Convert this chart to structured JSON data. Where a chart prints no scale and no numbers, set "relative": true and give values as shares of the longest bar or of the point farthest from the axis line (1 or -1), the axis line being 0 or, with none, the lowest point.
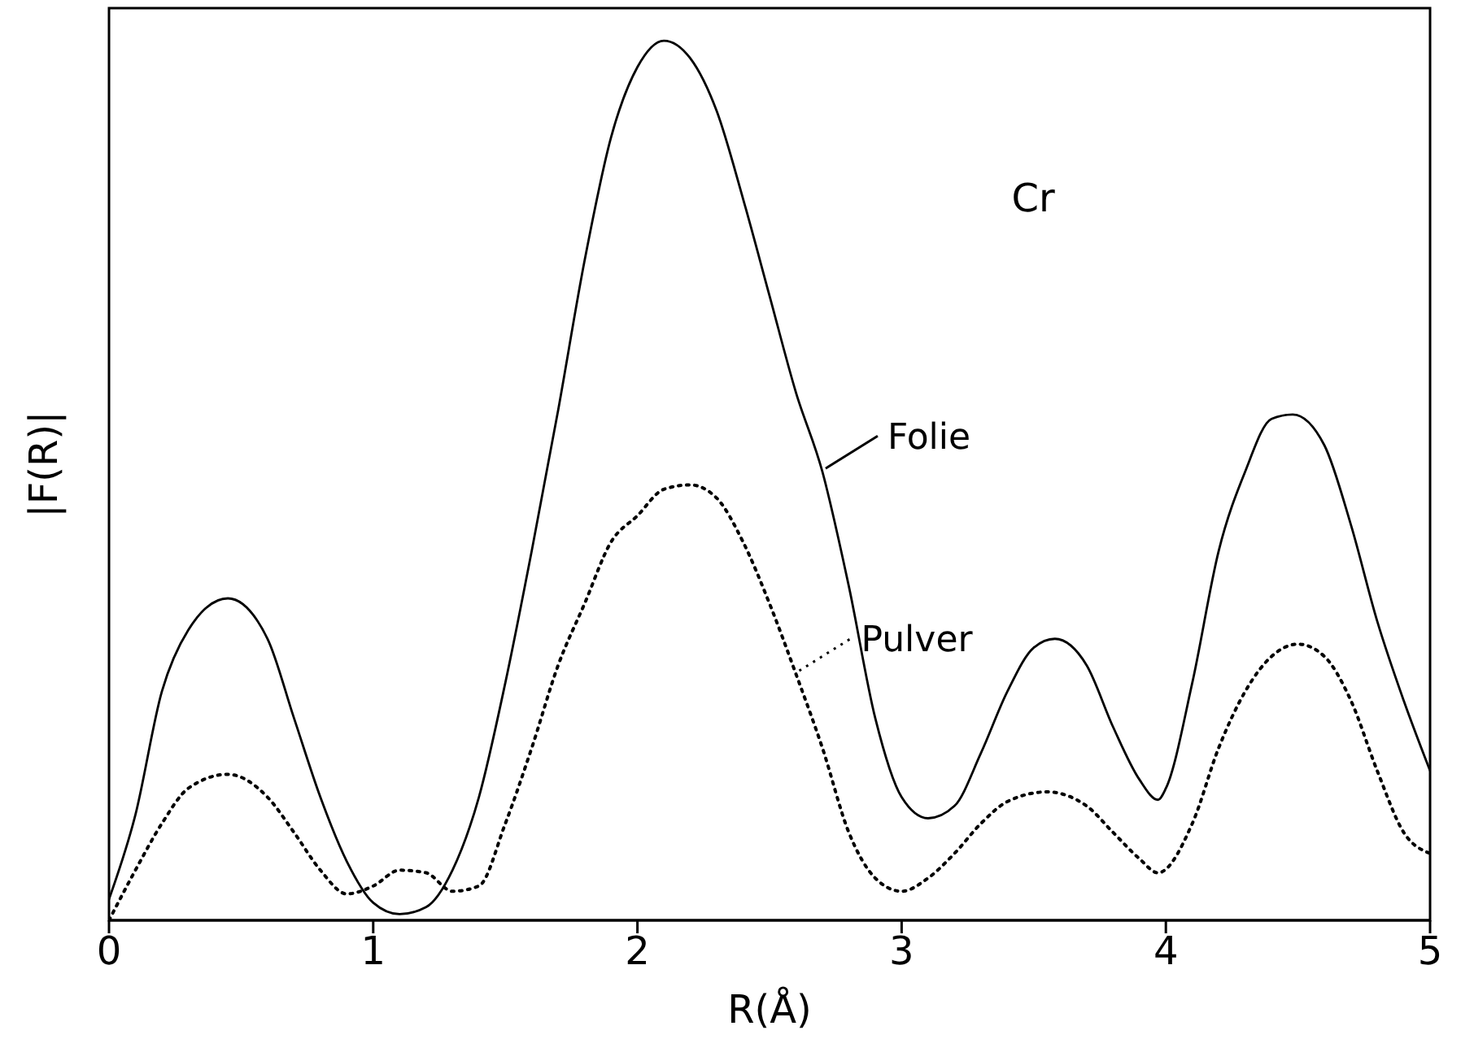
{
  "chart_data": {
    "type": "line",
    "relative": true,
    "xlabel": "R(Å)",
    "ylabel": "|F(R)|",
    "annotations": [
      "Cr"
    ],
    "xlim": [
      0,
      5
    ],
    "xticks": [
      0,
      1,
      2,
      3,
      4,
      5
    ],
    "grid": false,
    "legend": "right",
    "marker": "none",
    "series": [
      {
        "name": "Folie",
        "color": "#000000",
        "line_style": "solid",
        "x": [
          0,
          0.1,
          0.2,
          0.3,
          0.45,
          0.6,
          0.7,
          0.8,
          0.9,
          1.0,
          1.1,
          1.2,
          1.3,
          1.4,
          1.5,
          1.6,
          1.7,
          1.8,
          1.9,
          2.0,
          2.1,
          2.2,
          2.3,
          2.4,
          2.5,
          2.6,
          2.7,
          2.8,
          2.9,
          3.0,
          3.1,
          3.2,
          3.3,
          3.4,
          3.5,
          3.58,
          3.7,
          3.8,
          3.9,
          3.97,
          4.0,
          4.1,
          4.2,
          4.3,
          4.4,
          4.48,
          4.6,
          4.7,
          4.8,
          4.9,
          5.0
        ],
        "values": [
          0.024,
          0.12,
          0.26,
          0.33,
          0.366,
          0.32,
          0.23,
          0.14,
          0.067,
          0.02,
          0.007,
          0.015,
          0.057,
          0.14,
          0.27,
          0.42,
          0.58,
          0.75,
          0.89,
          0.97,
          1,
          0.98,
          0.92,
          0.82,
          0.71,
          0.6,
          0.51,
          0.38,
          0.23,
          0.14,
          0.116,
          0.13,
          0.19,
          0.26,
          0.31,
          0.32,
          0.29,
          0.22,
          0.16,
          0.137,
          0.15,
          0.27,
          0.42,
          0.51,
          0.57,
          0.575,
          0.54,
          0.45,
          0.34,
          0.25,
          0.17
        ]
      },
      {
        "name": "Pulver",
        "color": "#000000",
        "line_style": "dotted",
        "x": [
          0,
          0.1,
          0.2,
          0.3,
          0.45,
          0.6,
          0.7,
          0.8,
          0.9,
          1.0,
          1.1,
          1.2,
          1.3,
          1.4,
          1.5,
          1.6,
          1.7,
          1.8,
          1.9,
          2.0,
          2.1,
          2.2,
          2.3,
          2.4,
          2.5,
          2.6,
          2.7,
          2.8,
          2.9,
          3.0,
          3.1,
          3.2,
          3.3,
          3.4,
          3.55,
          3.7,
          3.8,
          3.9,
          3.97,
          4.1,
          4.2,
          4.3,
          4.4,
          4.5,
          4.6,
          4.7,
          4.8,
          4.9,
          5.0
        ],
        "values": [
          0,
          0.057,
          0.11,
          0.15,
          0.166,
          0.14,
          0.1,
          0.057,
          0.03,
          0.039,
          0.057,
          0.054,
          0.033,
          0.039,
          0.11,
          0.196,
          0.29,
          0.36,
          0.43,
          0.46,
          0.49,
          0.495,
          0.48,
          0.43,
          0.36,
          0.28,
          0.196,
          0.1,
          0.048,
          0.033,
          0.048,
          0.076,
          0.11,
          0.135,
          0.146,
          0.13,
          0.1,
          0.07,
          0.054,
          0.11,
          0.196,
          0.26,
          0.3,
          0.314,
          0.3,
          0.25,
          0.17,
          0.1,
          0.076
        ]
      }
    ]
  }
}
